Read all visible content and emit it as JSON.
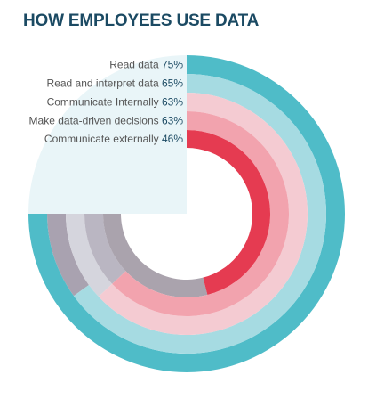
{
  "chart_data": {
    "type": "radial-bar",
    "title": "HOW EMPLOYEES USE DATA",
    "series": [
      {
        "name": "Read data",
        "value": 75,
        "value_label": "75%",
        "color": "#4fbcc8"
      },
      {
        "name": "Read and interpret data",
        "value": 65,
        "value_label": "65%",
        "color": "#a6dbe2"
      },
      {
        "name": "Communicate Internally",
        "value": 63,
        "value_label": "63%",
        "color": "#f4cbd2"
      },
      {
        "name": "Make data-driven decisions",
        "value": 63,
        "value_label": "63%",
        "color": "#f2a3ae"
      },
      {
        "name": "Communicate externally",
        "value": 46,
        "value_label": "46%",
        "color": "#e53b51"
      }
    ],
    "remainder_colors": [
      "#e9f5f8",
      "#a9a2b0",
      "#d5d5dd",
      "#bab6c2",
      "#aaa3ad"
    ],
    "label_color": "#555555",
    "value_color": "#1b4a63",
    "max": 100
  }
}
